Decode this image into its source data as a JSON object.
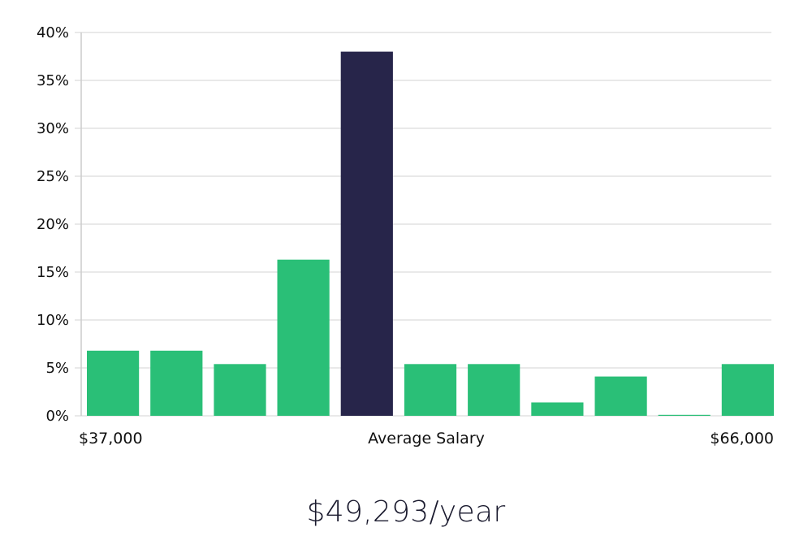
{
  "chart_data": {
    "type": "bar",
    "bins": 11,
    "values": [
      6.8,
      6.8,
      5.4,
      16.3,
      38.0,
      5.4,
      5.4,
      1.4,
      4.1,
      0.1,
      5.4
    ],
    "highlight_index": 4,
    "ylim": [
      0,
      40
    ],
    "yticks": [
      "0%",
      "5%",
      "10%",
      "15%",
      "20%",
      "25%",
      "30%",
      "35%",
      "40%"
    ],
    "ytick_values": [
      0,
      5,
      10,
      15,
      20,
      25,
      30,
      35,
      40
    ],
    "x_min_label": "$37,000",
    "x_center_label": "Average Salary",
    "x_max_label": "$66,000",
    "grid": true,
    "colors": {
      "bar": "#2abf77",
      "highlight": "#27254a",
      "grid": "#e2e2e2",
      "axis": "#cccccc"
    }
  },
  "headline": "$49,293/year"
}
